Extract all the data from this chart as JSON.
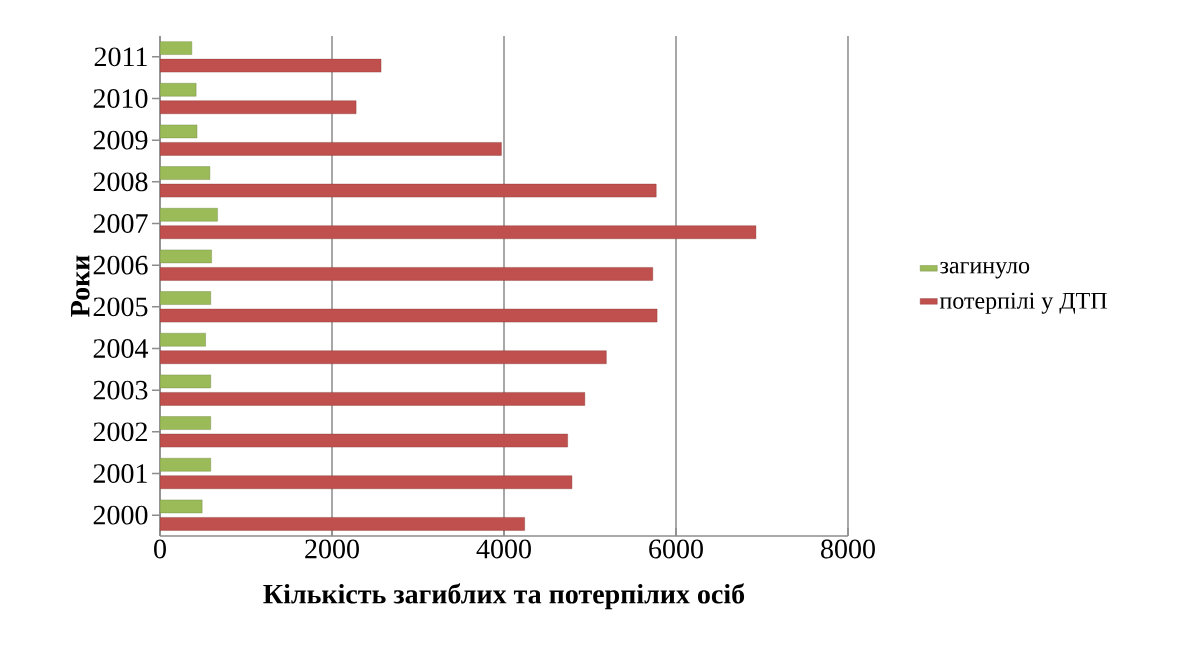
{
  "chart_data": {
    "type": "bar",
    "orientation": "horizontal",
    "xlabel": "Кількість загиблих та потерпілих осіб",
    "ylabel": "Роки",
    "categories": [
      "2011",
      "2010",
      "2009",
      "2008",
      "2007",
      "2006",
      "2005",
      "2004",
      "2003",
      "2002",
      "2001",
      "2000"
    ],
    "series": [
      {
        "name": "загинуло",
        "color": "#9bbb59",
        "values": [
          370,
          420,
          430,
          580,
          670,
          600,
          590,
          530,
          590,
          590,
          590,
          490
        ]
      },
      {
        "name": "потерпілі у ДТП",
        "color": "#c0504d",
        "values": [
          2570,
          2280,
          3970,
          5770,
          6930,
          5730,
          5780,
          5190,
          4940,
          4740,
          4790,
          4240
        ]
      }
    ],
    "xlim": [
      0,
      8000
    ],
    "xticks": [
      0,
      2000,
      4000,
      6000,
      8000
    ],
    "grid": "x",
    "legend": "right"
  }
}
